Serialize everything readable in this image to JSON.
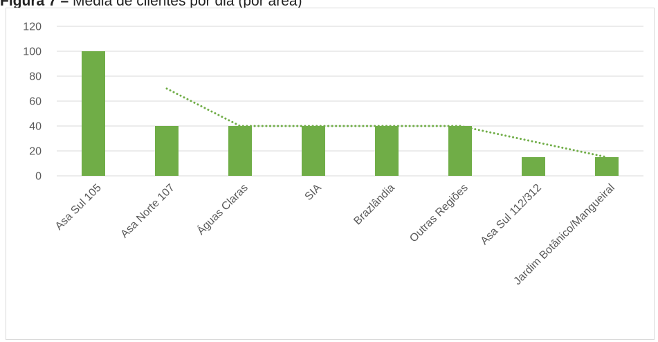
{
  "caption": {
    "figure_label": "Figura 7 –",
    "title": "Média de clientes por dia (por área)"
  },
  "colors": {
    "bar": "#70ad47",
    "trendline": "#70ad47",
    "gridline": "#d9d9d9",
    "tick_text": "#595959"
  },
  "chart_data": {
    "type": "bar",
    "title": "Média de clientes por dia (por área)",
    "xlabel": "",
    "ylabel": "",
    "ylim": [
      0,
      120
    ],
    "yticks": [
      0,
      20,
      40,
      60,
      80,
      100,
      120
    ],
    "grid": true,
    "categories": [
      "Asa Sul 105",
      "Asa Norte 107",
      "Águas Claras",
      "SIA",
      "Brazlândia",
      "Outras Regiões",
      "Asa Sul 112/312",
      "Jardim Botânico/Mangueiral"
    ],
    "values": [
      100,
      40,
      40,
      40,
      40,
      40,
      15,
      15
    ],
    "trendline": {
      "type": "moving_average",
      "period": 2,
      "style": "dotted",
      "values": [
        null,
        70,
        40,
        40,
        40,
        40,
        27.5,
        15
      ]
    }
  }
}
